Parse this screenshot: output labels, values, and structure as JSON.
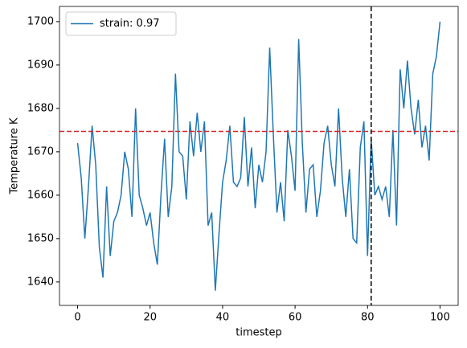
{
  "chart_data": {
    "type": "line",
    "xlabel": "timestep",
    "ylabel": "Temperature K",
    "x": [
      0,
      1,
      2,
      3,
      4,
      5,
      6,
      7,
      8,
      9,
      10,
      11,
      12,
      13,
      14,
      15,
      16,
      17,
      18,
      19,
      20,
      21,
      22,
      23,
      24,
      25,
      26,
      27,
      28,
      29,
      30,
      31,
      32,
      33,
      34,
      35,
      36,
      37,
      38,
      39,
      40,
      41,
      42,
      43,
      44,
      45,
      46,
      47,
      48,
      49,
      50,
      51,
      52,
      53,
      54,
      55,
      56,
      57,
      58,
      59,
      60,
      61,
      62,
      63,
      64,
      65,
      66,
      67,
      68,
      69,
      70,
      71,
      72,
      73,
      74,
      75,
      76,
      77,
      78,
      79,
      80,
      81,
      82,
      83,
      84,
      85,
      86,
      87,
      88,
      89,
      90,
      91,
      92,
      93,
      94,
      95,
      96,
      97,
      98,
      99,
      100
    ],
    "series": [
      {
        "name": "strain: 0.97",
        "color": "#1f77b4",
        "values": [
          1672,
          1664,
          1650,
          1662,
          1676,
          1667,
          1648,
          1641,
          1662,
          1646,
          1654,
          1656,
          1660,
          1670,
          1666,
          1655,
          1680,
          1660,
          1657,
          1653,
          1656,
          1649,
          1644,
          1660,
          1673,
          1655,
          1662,
          1688,
          1670,
          1669,
          1659,
          1677,
          1669,
          1679,
          1670,
          1677,
          1653,
          1656,
          1638,
          1651,
          1663,
          1668,
          1676,
          1663,
          1662,
          1664,
          1678,
          1662,
          1671,
          1657,
          1667,
          1663,
          1670,
          1694,
          1674,
          1656,
          1663,
          1654,
          1675,
          1669,
          1661,
          1696,
          1672,
          1656,
          1666,
          1667,
          1655,
          1661,
          1672,
          1676,
          1667,
          1662,
          1680,
          1664,
          1655,
          1666,
          1650,
          1649,
          1671,
          1677,
          1646,
          1673,
          1660,
          1662,
          1659,
          1662,
          1655,
          1675,
          1653,
          1689,
          1680,
          1691,
          1680,
          1674,
          1682,
          1671,
          1676,
          1668,
          1688,
          1692,
          1700
        ]
      }
    ],
    "hline": {
      "value": 1674.7,
      "color": "#d62728"
    },
    "vline": {
      "value": 81,
      "color": "#000000"
    },
    "xlim": [
      -5,
      105
    ],
    "ylim": [
      1634.6,
      1703.5
    ],
    "xticks": [
      0,
      20,
      40,
      60,
      80,
      100
    ],
    "yticks": [
      1640,
      1650,
      1660,
      1670,
      1680,
      1690,
      1700
    ],
    "legend": "upper left"
  }
}
